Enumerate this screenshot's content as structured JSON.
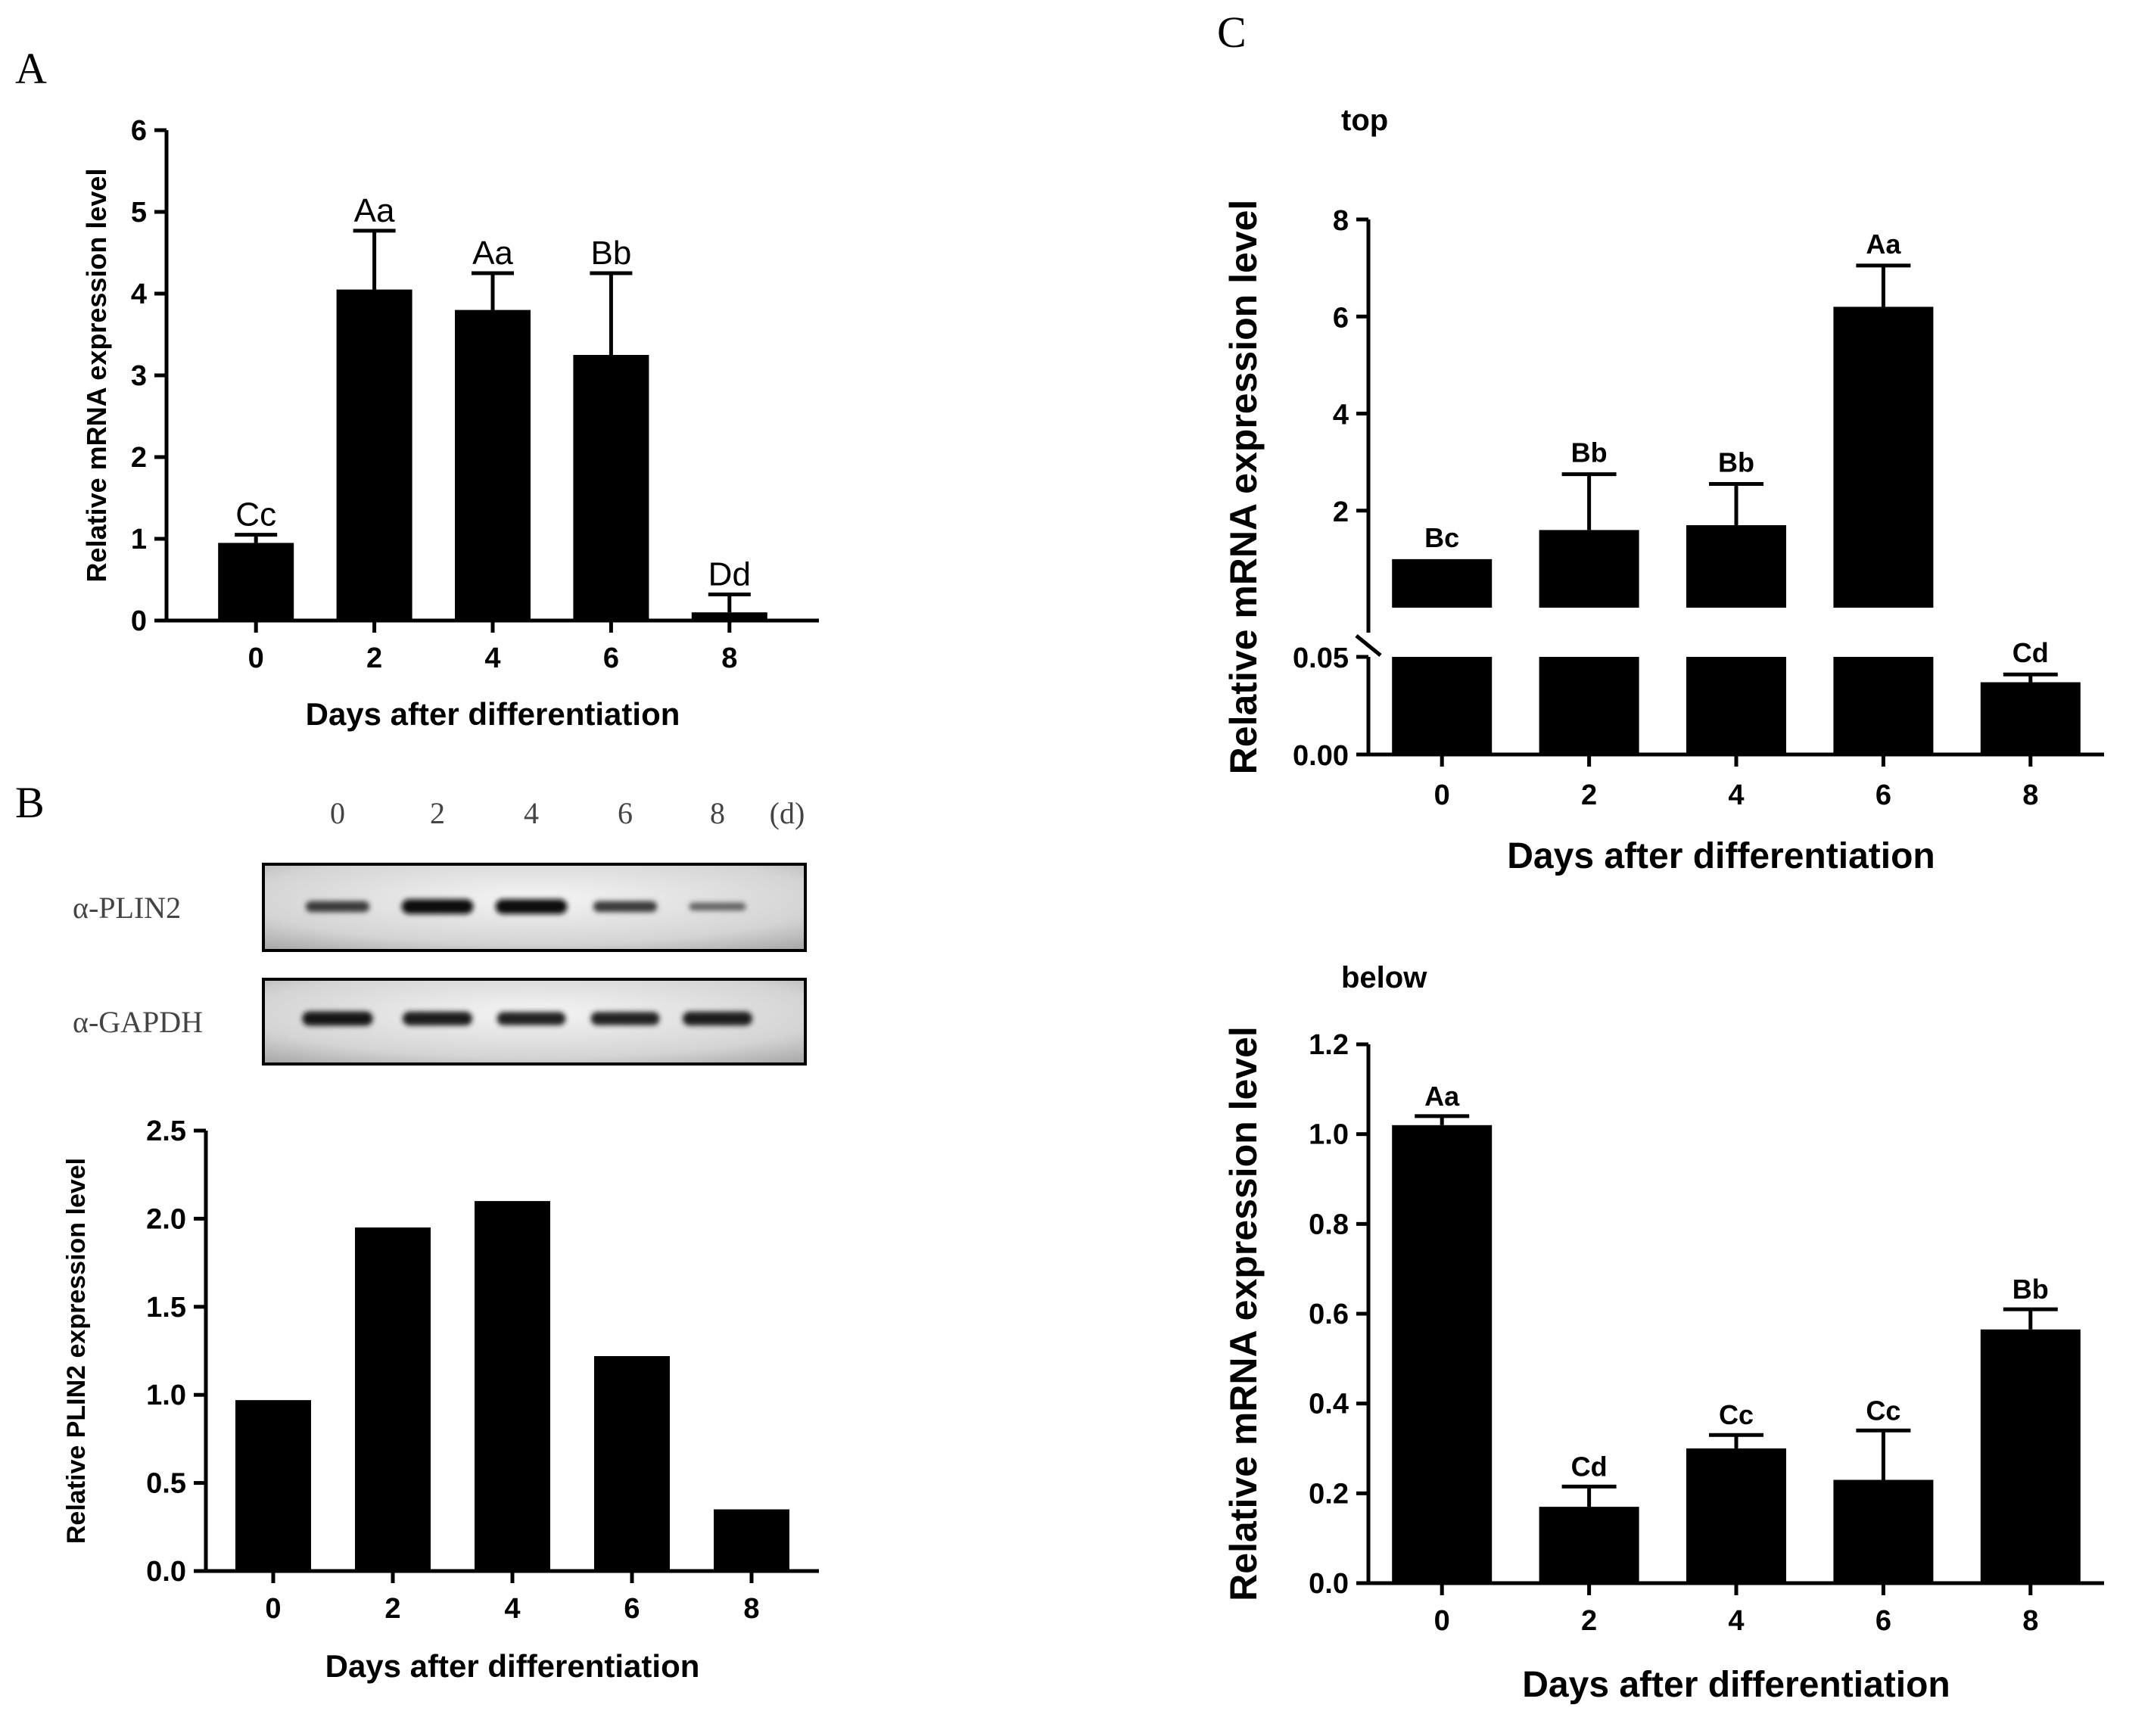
{
  "panels": {
    "A": {
      "letter": "A"
    },
    "B": {
      "letter": "B"
    },
    "C": {
      "letter": "C",
      "top_label": "top",
      "below_label": "below"
    }
  },
  "western_blot": {
    "lanes": [
      "0",
      "2",
      "4",
      "6",
      "8"
    ],
    "unit": "(d)",
    "rows": [
      {
        "label": "α-PLIN2",
        "intensities": [
          0.55,
          0.95,
          0.95,
          0.55,
          0.2
        ]
      },
      {
        "label": "α-GAPDH",
        "intensities": [
          0.9,
          0.85,
          0.8,
          0.8,
          0.85
        ]
      }
    ]
  },
  "chart_data": [
    {
      "id": "A",
      "type": "bar",
      "categories": [
        "0",
        "2",
        "4",
        "6",
        "8"
      ],
      "values": [
        0.95,
        4.05,
        3.8,
        3.25,
        0.1
      ],
      "errors": [
        0.1,
        0.72,
        0.45,
        1.0,
        0.22
      ],
      "labels": [
        "Cc",
        "Aa",
        "Aa",
        "Bb",
        "Dd"
      ],
      "xlabel": "Days after differentiation",
      "ylabel": "Relative mRNA expression level",
      "ylim": [
        0,
        6
      ],
      "yticks": [
        "0",
        "1",
        "2",
        "3",
        "4",
        "5",
        "6"
      ]
    },
    {
      "id": "B",
      "type": "bar",
      "categories": [
        "0",
        "2",
        "4",
        "6",
        "8"
      ],
      "values": [
        0.97,
        1.95,
        2.1,
        1.22,
        0.35
      ],
      "xlabel": "Days after differentiation",
      "ylabel": "Relative PLIN2 expression level",
      "ylim": [
        0,
        2.5
      ],
      "yticks": [
        "0.0",
        "0.5",
        "1.0",
        "1.5",
        "2.0",
        "2.5"
      ]
    },
    {
      "id": "C-top",
      "type": "bar",
      "categories": [
        "0",
        "2",
        "4",
        "6",
        "8"
      ],
      "values": [
        1.0,
        1.6,
        1.7,
        6.2,
        0.037
      ],
      "errors": [
        0.0,
        1.15,
        0.85,
        0.85,
        0.004
      ],
      "labels": [
        "Bc",
        "Bb",
        "Bb",
        "Aa",
        "Cd"
      ],
      "xlabel": "Days after differentiation",
      "ylabel": "Relative mRNA expression level",
      "broken_axis": {
        "lower": [
          0,
          0.05
        ],
        "upper": [
          0,
          8
        ]
      },
      "yticks_upper": [
        "2",
        "4",
        "6",
        "8"
      ],
      "yticks_lower": [
        "0.00",
        "0.05"
      ]
    },
    {
      "id": "C-below",
      "type": "bar",
      "categories": [
        "0",
        "2",
        "4",
        "6",
        "8"
      ],
      "values": [
        1.02,
        0.17,
        0.3,
        0.23,
        0.565
      ],
      "errors": [
        0.02,
        0.045,
        0.03,
        0.11,
        0.045
      ],
      "labels": [
        "Aa",
        "Cd",
        "Cc",
        "Cc",
        "Bb"
      ],
      "xlabel": "Days after differentiation",
      "ylabel": "Relative mRNA expression level",
      "ylim": [
        0,
        1.2
      ],
      "yticks": [
        "0.0",
        "0.2",
        "0.4",
        "0.6",
        "0.8",
        "1.0",
        "1.2"
      ]
    }
  ]
}
